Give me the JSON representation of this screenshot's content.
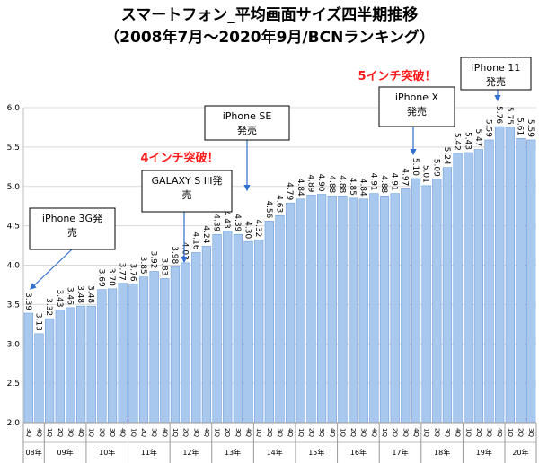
{
  "chart_data": {
    "type": "bar",
    "title": "スマートフォン_平均画面サイズ四半期推移",
    "subtitle": "（2008年7月～2020年9月/BCNランキング）",
    "ylim": [
      2.0,
      6.0
    ],
    "yticks": [
      "2.0",
      "2.5",
      "3.0",
      "3.5",
      "4.0",
      "4.5",
      "5.0",
      "5.5",
      "6.0"
    ],
    "grid": true,
    "bar_color": "#a9c8ee",
    "categories": [
      "3Q",
      "4Q",
      "1Q",
      "2Q",
      "3Q",
      "4Q",
      "1Q",
      "2Q",
      "3Q",
      "4Q",
      "1Q",
      "2Q",
      "3Q",
      "4Q",
      "1Q",
      "2Q",
      "3Q",
      "4Q",
      "1Q",
      "2Q",
      "3Q",
      "4Q",
      "1Q",
      "2Q",
      "3Q",
      "4Q",
      "1Q",
      "2Q",
      "3Q",
      "4Q",
      "1Q",
      "2Q",
      "3Q",
      "4Q",
      "1Q",
      "2Q",
      "3Q",
      "4Q",
      "1Q",
      "2Q",
      "3Q",
      "4Q",
      "1Q",
      "2Q",
      "3Q",
      "4Q",
      "1Q",
      "2Q",
      "3Q"
    ],
    "years": [
      {
        "label": "08年",
        "count": 2
      },
      {
        "label": "09年",
        "count": 4
      },
      {
        "label": "10年",
        "count": 4
      },
      {
        "label": "11年",
        "count": 4
      },
      {
        "label": "12年",
        "count": 4
      },
      {
        "label": "13年",
        "count": 4
      },
      {
        "label": "14年",
        "count": 4
      },
      {
        "label": "15年",
        "count": 4
      },
      {
        "label": "16年",
        "count": 4
      },
      {
        "label": "17年",
        "count": 4
      },
      {
        "label": "18年",
        "count": 4
      },
      {
        "label": "19年",
        "count": 4
      },
      {
        "label": "20年",
        "count": 3
      }
    ],
    "values": [
      3.39,
      3.13,
      3.32,
      3.43,
      3.46,
      3.48,
      3.48,
      3.69,
      3.7,
      3.77,
      3.76,
      3.85,
      3.92,
      3.83,
      3.98,
      4.03,
      4.16,
      4.24,
      4.39,
      4.43,
      4.39,
      4.3,
      4.32,
      4.56,
      4.63,
      4.79,
      4.84,
      4.89,
      4.9,
      4.88,
      4.88,
      4.85,
      4.84,
      4.91,
      4.88,
      4.91,
      4.97,
      5.1,
      5.01,
      5.09,
      5.24,
      5.42,
      5.43,
      5.47,
      5.59,
      5.76,
      5.75,
      5.61,
      5.59
    ],
    "annotations": [
      {
        "lines": [
          "iPhone 3G発",
          "売"
        ],
        "bar": 0
      },
      {
        "lines": [
          "GALAXY S III発",
          "売"
        ],
        "bar": 15
      },
      {
        "lines": [
          "iPhone SE",
          "発売"
        ],
        "bar": 21
      },
      {
        "lines": [
          "iPhone X",
          "発売"
        ],
        "bar": 37
      },
      {
        "lines": [
          "iPhone 11",
          "発売"
        ],
        "bar": 45
      }
    ],
    "milestones": [
      "4インチ突破！",
      "5インチ突破！"
    ]
  }
}
